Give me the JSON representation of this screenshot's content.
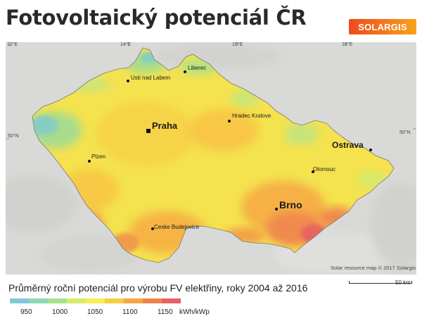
{
  "header": {
    "title": "Fotovoltaický potenciál ČR",
    "logo_text": "SOLARGIS"
  },
  "map": {
    "longitude_labels": [
      "12°E",
      "14°E",
      "16°E",
      "18°E"
    ],
    "latitude_labels": [
      "50°N",
      "50°N"
    ],
    "cities_small": [
      "Usti nad Labem",
      "Liberec",
      "Hradec Kralove",
      "Plzen",
      "Olomouc",
      "Ceske Budejovice"
    ],
    "cities_large": [
      "Praha",
      "Ostrava",
      "Brno"
    ],
    "credit": "Solar resource map © 2017 Solargis",
    "scale_label": "50 km"
  },
  "legend": {
    "caption": "Průměrný roční potenciál pro výrobu FV elektřiny, roky 2004 až 2016",
    "ticks": [
      "950",
      "1000",
      "1050",
      "1100",
      "1150"
    ],
    "unit": "kWh/kWp",
    "colors": [
      "#7ec8d8",
      "#8fd6b8",
      "#a8e08e",
      "#d8ec6a",
      "#f6ee52",
      "#f8cc44",
      "#f6a645",
      "#f0824e",
      "#e85e64"
    ]
  }
}
